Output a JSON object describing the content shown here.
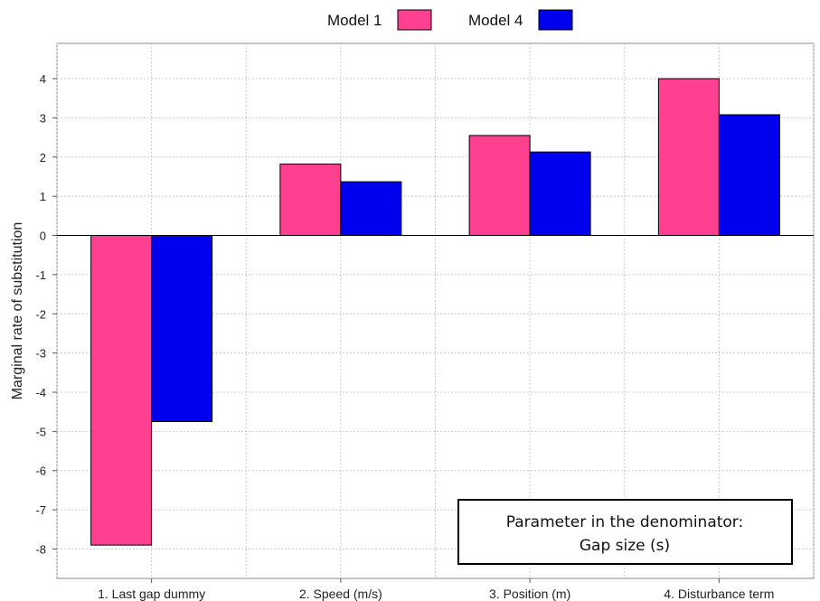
{
  "chart_data": {
    "type": "bar",
    "categories": [
      "1. Last gap dummy",
      "2. Speed (m/s)",
      "3. Position (m)",
      "4. Disturbance term"
    ],
    "series": [
      {
        "name": "Model 1",
        "color": "#ff3f8f",
        "values": [
          -7.9,
          1.82,
          2.55,
          4.0
        ]
      },
      {
        "name": "Model 4",
        "color": "#0000ee",
        "values": [
          -4.75,
          1.37,
          2.13,
          3.08
        ]
      }
    ],
    "title": "",
    "xlabel": "",
    "ylabel": "Marginal rate of substitution",
    "ylim": [
      -8.75,
      4.9
    ],
    "yticks": [
      4,
      3,
      2,
      1,
      0,
      -1,
      -2,
      -3,
      -4,
      -5,
      -6,
      -7,
      -8
    ],
    "grid": true,
    "legend_position": "top-center",
    "annotation": {
      "line1": "Parameter in the denominator:",
      "line2": "Gap size (s)"
    }
  }
}
